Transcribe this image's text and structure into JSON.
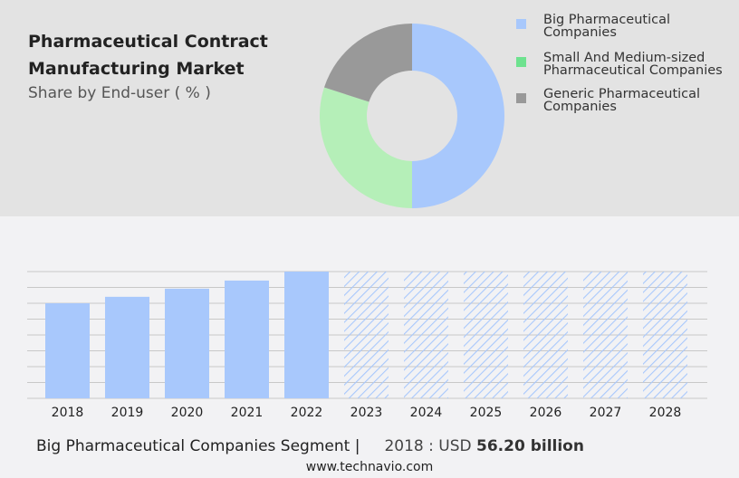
{
  "header": {
    "title": "Pharmaceutical Contract Manufacturing Market",
    "subtitle": "Share by End-user ( % )"
  },
  "chart_data": [
    {
      "type": "pie",
      "variant": "donut",
      "categories": [
        "Big Pharmaceutical Companies",
        "Small And Medium-sized Pharmaceutical Companies",
        "Generic Pharmaceutical Companies"
      ],
      "values": [
        50,
        30,
        20
      ],
      "colors": [
        "#a8c8fc",
        "#b5efb8",
        "#999999"
      ],
      "legend_colors": [
        "#a8c8fc",
        "#6ee28f",
        "#999999"
      ],
      "legend_position": "right"
    },
    {
      "type": "bar",
      "categories": [
        "2018",
        "2019",
        "2020",
        "2021",
        "2022",
        "2023",
        "2024",
        "2025",
        "2026",
        "2027",
        "2028"
      ],
      "values": [
        56.2,
        60.0,
        64.8,
        69.6,
        74.9,
        null,
        null,
        null,
        null,
        null,
        null
      ],
      "forecast_from": "2023",
      "bar_color": "#a8c8fc",
      "forecast_style": "hatched",
      "grid": true,
      "ylim": [
        0,
        74.9
      ]
    }
  ],
  "footer": {
    "segment": "Big Pharmaceutical Companies Segment",
    "separator": "|",
    "year_label": "2018 : USD",
    "value": "56.20 billion",
    "website": "www.technavio.com"
  }
}
